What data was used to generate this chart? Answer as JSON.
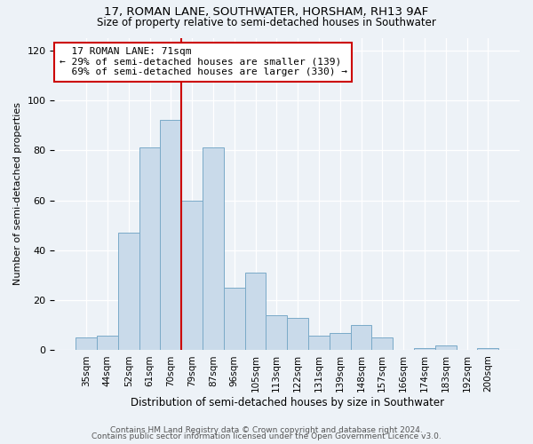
{
  "title1": "17, ROMAN LANE, SOUTHWATER, HORSHAM, RH13 9AF",
  "title2": "Size of property relative to semi-detached houses in Southwater",
  "xlabel": "Distribution of semi-detached houses by size in Southwater",
  "ylabel": "Number of semi-detached properties",
  "bar_values": [
    5,
    6,
    47,
    81,
    92,
    60,
    81,
    25,
    31,
    14,
    13,
    6,
    7,
    10,
    5,
    0,
    1,
    2,
    0,
    1
  ],
  "bar_labels": [
    "35sqm",
    "44sqm",
    "52sqm",
    "61sqm",
    "70sqm",
    "79sqm",
    "87sqm",
    "96sqm",
    "105sqm",
    "113sqm",
    "122sqm",
    "131sqm",
    "139sqm",
    "148sqm",
    "157sqm",
    "166sqm",
    "174sqm",
    "183sqm",
    "192sqm",
    "200sqm"
  ],
  "bar_color": "#c9daea",
  "bar_edge_color": "#7aaac8",
  "property_line_x": 4.5,
  "property_line_color": "#cc0000",
  "annotation_text": "  17 ROMAN LANE: 71sqm  \n← 29% of semi-detached houses are smaller (139)\n  69% of semi-detached houses are larger (330) →",
  "annotation_box_color": "#ffffff",
  "annotation_box_edge": "#cc0000",
  "ylim": [
    0,
    125
  ],
  "yticks": [
    0,
    20,
    40,
    60,
    80,
    100,
    120
  ],
  "background_color": "#edf2f7",
  "footer1": "Contains HM Land Registry data © Crown copyright and database right 2024.",
  "footer2": "Contains public sector information licensed under the Open Government Licence v3.0."
}
